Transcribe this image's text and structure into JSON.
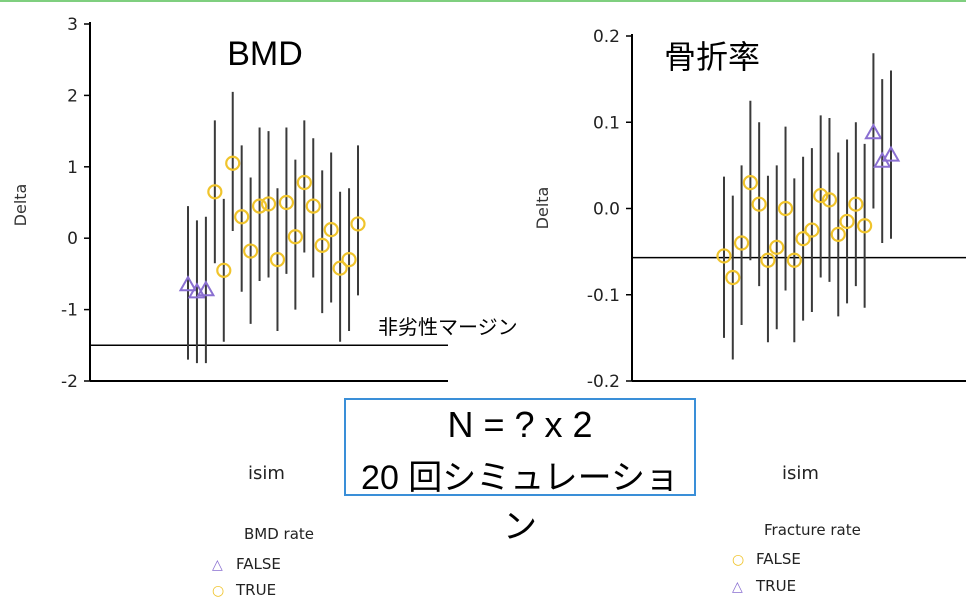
{
  "chart_data": [
    {
      "type": "scatter",
      "title": "BMD",
      "ylabel": "Delta",
      "xlabel": "isim",
      "ylim": [
        -2,
        3
      ],
      "yticks": [
        -2,
        -1,
        0,
        1,
        2,
        3
      ],
      "reference_line": {
        "y": -1.5,
        "label": "非劣性マージン"
      },
      "legend": {
        "title": "BMD rate",
        "placement": "bottom-left",
        "items": [
          {
            "label": "FALSE",
            "marker": "triangle",
            "color": "#8a6fd1"
          },
          {
            "label": "TRUE",
            "marker": "circle",
            "color": "#f0c42c"
          }
        ]
      },
      "points": [
        {
          "x": 1,
          "y": -0.65,
          "low": -1.7,
          "high": 0.45,
          "group": "FALSE"
        },
        {
          "x": 2,
          "y": -0.75,
          "low": -1.75,
          "high": 0.25,
          "group": "FALSE"
        },
        {
          "x": 3,
          "y": -0.72,
          "low": -1.75,
          "high": 0.3,
          "group": "FALSE"
        },
        {
          "x": 4,
          "y": 0.65,
          "low": -0.35,
          "high": 1.65,
          "group": "TRUE"
        },
        {
          "x": 5,
          "y": -0.45,
          "low": -1.45,
          "high": 0.55,
          "group": "TRUE"
        },
        {
          "x": 6,
          "y": 1.05,
          "low": 0.1,
          "high": 2.05,
          "group": "TRUE"
        },
        {
          "x": 7,
          "y": 0.3,
          "low": -0.75,
          "high": 1.3,
          "group": "TRUE"
        },
        {
          "x": 8,
          "y": -0.18,
          "low": -1.2,
          "high": 0.85,
          "group": "TRUE"
        },
        {
          "x": 9,
          "y": 0.45,
          "low": -0.6,
          "high": 1.55,
          "group": "TRUE"
        },
        {
          "x": 10,
          "y": 0.48,
          "low": -0.55,
          "high": 1.5,
          "group": "TRUE"
        },
        {
          "x": 11,
          "y": -0.3,
          "low": -1.3,
          "high": 0.7,
          "group": "TRUE"
        },
        {
          "x": 12,
          "y": 0.5,
          "low": -0.5,
          "high": 1.55,
          "group": "TRUE"
        },
        {
          "x": 13,
          "y": 0.02,
          "low": -1.0,
          "high": 1.1,
          "group": "TRUE"
        },
        {
          "x": 14,
          "y": 0.78,
          "low": -0.2,
          "high": 1.65,
          "group": "TRUE"
        },
        {
          "x": 15,
          "y": 0.45,
          "low": -0.55,
          "high": 1.4,
          "group": "TRUE"
        },
        {
          "x": 16,
          "y": -0.1,
          "low": -1.05,
          "high": 0.95,
          "group": "TRUE"
        },
        {
          "x": 17,
          "y": 0.12,
          "low": -0.9,
          "high": 1.2,
          "group": "TRUE"
        },
        {
          "x": 18,
          "y": -0.42,
          "low": -1.45,
          "high": 0.65,
          "group": "TRUE"
        },
        {
          "x": 19,
          "y": -0.3,
          "low": -1.3,
          "high": 0.7,
          "group": "TRUE"
        },
        {
          "x": 20,
          "y": 0.2,
          "low": -0.8,
          "high": 1.3,
          "group": "TRUE"
        }
      ]
    },
    {
      "type": "scatter",
      "title": "骨折率",
      "ylabel": "Delta",
      "xlabel": "isim",
      "ylim": [
        -0.2,
        0.2
      ],
      "yticks": [
        -0.2,
        -0.1,
        0,
        0.1,
        0.2
      ],
      "reference_line": {
        "y": -0.057,
        "label": ""
      },
      "legend": {
        "title": "Fracture rate",
        "placement": "bottom-right",
        "items": [
          {
            "label": "FALSE",
            "marker": "circle",
            "color": "#f0c42c"
          },
          {
            "label": "TRUE",
            "marker": "triangle",
            "color": "#8a6fd1"
          }
        ]
      },
      "points": [
        {
          "x": 1,
          "y": -0.055,
          "low": -0.15,
          "high": 0.037,
          "group": "FALSE"
        },
        {
          "x": 2,
          "y": -0.08,
          "low": -0.175,
          "high": 0.015,
          "group": "FALSE"
        },
        {
          "x": 3,
          "y": -0.04,
          "low": -0.135,
          "high": 0.05,
          "group": "FALSE"
        },
        {
          "x": 4,
          "y": 0.03,
          "low": -0.06,
          "high": 0.125,
          "group": "FALSE"
        },
        {
          "x": 5,
          "y": 0.005,
          "low": -0.09,
          "high": 0.1,
          "group": "FALSE"
        },
        {
          "x": 6,
          "y": -0.06,
          "low": -0.155,
          "high": 0.038,
          "group": "FALSE"
        },
        {
          "x": 7,
          "y": -0.045,
          "low": -0.14,
          "high": 0.05,
          "group": "FALSE"
        },
        {
          "x": 8,
          "y": 0.0,
          "low": -0.095,
          "high": 0.095,
          "group": "FALSE"
        },
        {
          "x": 9,
          "y": -0.06,
          "low": -0.155,
          "high": 0.035,
          "group": "FALSE"
        },
        {
          "x": 10,
          "y": -0.035,
          "low": -0.13,
          "high": 0.06,
          "group": "FALSE"
        },
        {
          "x": 11,
          "y": -0.025,
          "low": -0.12,
          "high": 0.07,
          "group": "FALSE"
        },
        {
          "x": 12,
          "y": 0.015,
          "low": -0.08,
          "high": 0.108,
          "group": "FALSE"
        },
        {
          "x": 13,
          "y": 0.01,
          "low": -0.085,
          "high": 0.105,
          "group": "FALSE"
        },
        {
          "x": 14,
          "y": -0.03,
          "low": -0.125,
          "high": 0.065,
          "group": "FALSE"
        },
        {
          "x": 15,
          "y": -0.015,
          "low": -0.11,
          "high": 0.08,
          "group": "FALSE"
        },
        {
          "x": 16,
          "y": 0.005,
          "low": -0.09,
          "high": 0.1,
          "group": "FALSE"
        },
        {
          "x": 17,
          "y": -0.02,
          "low": -0.115,
          "high": 0.075,
          "group": "FALSE"
        },
        {
          "x": 18,
          "y": 0.088,
          "low": 0.0,
          "high": 0.18,
          "group": "TRUE"
        },
        {
          "x": 19,
          "y": 0.055,
          "low": -0.04,
          "high": 0.15,
          "group": "TRUE"
        },
        {
          "x": 20,
          "y": 0.062,
          "low": -0.035,
          "high": 0.16,
          "group": "TRUE"
        }
      ]
    }
  ],
  "annotation": {
    "line1": "N = ? x 2",
    "line2": "20 回シミュレーション"
  },
  "colors": {
    "false_marker": "#8a6fd1",
    "true_marker": "#f0c42c",
    "box_border": "#3a8fd8"
  }
}
